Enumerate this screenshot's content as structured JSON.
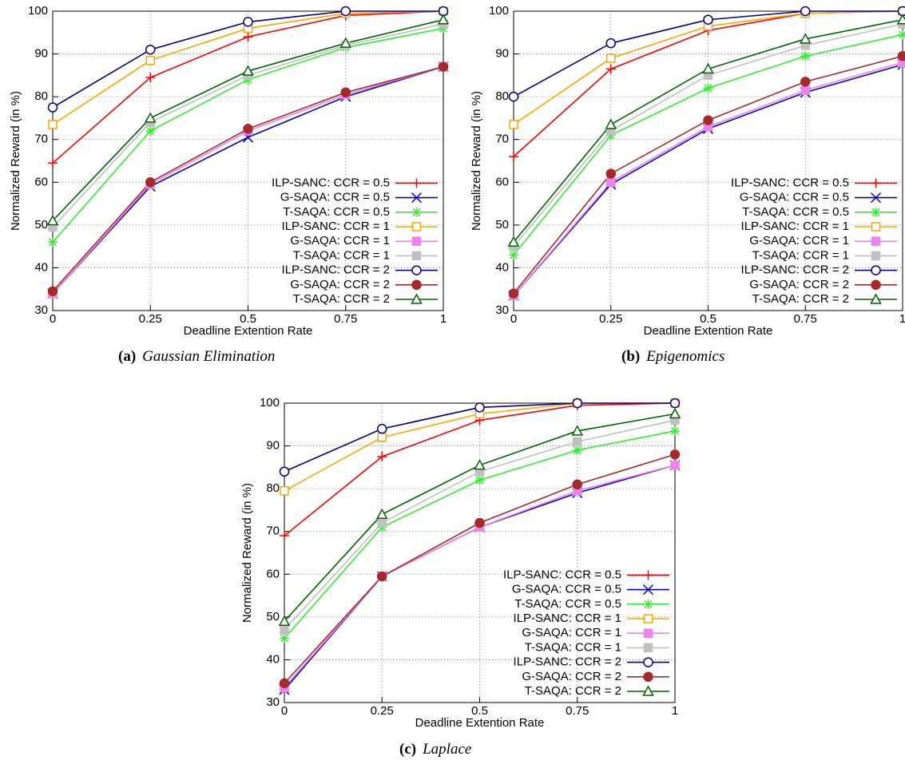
{
  "chart_data": [
    {
      "type": "line",
      "caption_label": "(a)",
      "caption": "Gaussian Elimination",
      "xlabel": "Deadline Extention Rate",
      "ylabel": "Normalized Reward (in %)",
      "x": [
        0,
        0.25,
        0.5,
        0.75,
        1
      ],
      "xlim": [
        0,
        1
      ],
      "xticks": [
        0,
        0.25,
        0.5,
        0.75,
        1
      ],
      "ylim": [
        30,
        100
      ],
      "yticks": [
        30,
        40,
        50,
        60,
        70,
        80,
        90,
        100
      ],
      "grid": true,
      "legend": "lower right",
      "series": [
        {
          "name": "ILP-SANC: CCR = 0.5",
          "color": "#ff0000",
          "marker": "plus",
          "values": [
            64.5,
            84.5,
            94,
            99,
            100
          ]
        },
        {
          "name": "G-SAQA: CCR = 0.5",
          "color": "#0000cc",
          "marker": "cross",
          "values": [
            34,
            59,
            70.5,
            80,
            87
          ]
        },
        {
          "name": "T-SAQA: CCR = 0.5",
          "color": "#33ee33",
          "marker": "star",
          "values": [
            46,
            72,
            84,
            91.5,
            96
          ]
        },
        {
          "name": "ILP-SANC: CCR = 1",
          "color": "#ffa500",
          "marker": "square-open",
          "values": [
            73.5,
            88.5,
            96,
            99.5,
            100
          ]
        },
        {
          "name": "G-SAQA: CCR = 1",
          "color": "#ee82ee",
          "marker": "square",
          "values": [
            34,
            59.5,
            72,
            80.5,
            87
          ]
        },
        {
          "name": "T-SAQA: CCR = 1",
          "color": "#c0c0c0",
          "marker": "square",
          "values": [
            49.5,
            74,
            85,
            92,
            97
          ]
        },
        {
          "name": "ILP-SANC: CCR = 2",
          "color": "#000080",
          "marker": "circle-open",
          "values": [
            77.5,
            91,
            97.5,
            100,
            100
          ]
        },
        {
          "name": "G-SAQA: CCR = 2",
          "color": "#a52a2a",
          "marker": "circle",
          "values": [
            34.5,
            60,
            72.5,
            81,
            87
          ]
        },
        {
          "name": "T-SAQA: CCR = 2",
          "color": "#006400",
          "marker": "triangle-open",
          "values": [
            51,
            75,
            86,
            92.5,
            98
          ]
        }
      ]
    },
    {
      "type": "line",
      "caption_label": "(b)",
      "caption": "Epigenomics",
      "xlabel": "Deadline Extention Rate",
      "ylabel": "Normalized Reward (in %)",
      "x": [
        0,
        0.25,
        0.5,
        0.75,
        1
      ],
      "xlim": [
        0,
        1
      ],
      "xticks": [
        0,
        0.25,
        0.5,
        0.75,
        1
      ],
      "ylim": [
        30,
        100
      ],
      "yticks": [
        30,
        40,
        50,
        60,
        70,
        80,
        90,
        100
      ],
      "grid": true,
      "legend": "lower right",
      "series": [
        {
          "name": "ILP-SANC: CCR = 0.5",
          "color": "#ff0000",
          "marker": "plus",
          "values": [
            66,
            86.5,
            95.5,
            99.5,
            100
          ]
        },
        {
          "name": "G-SAQA: CCR = 0.5",
          "color": "#0000cc",
          "marker": "cross",
          "values": [
            33.5,
            59.5,
            72.5,
            81,
            87.5
          ]
        },
        {
          "name": "T-SAQA: CCR = 0.5",
          "color": "#33ee33",
          "marker": "star",
          "values": [
            43,
            71,
            82,
            89.5,
            94.5
          ]
        },
        {
          "name": "ILP-SANC: CCR = 1",
          "color": "#ffa500",
          "marker": "square-open",
          "values": [
            73.5,
            89,
            96.5,
            99.5,
            100
          ]
        },
        {
          "name": "G-SAQA: CCR = 1",
          "color": "#ee82ee",
          "marker": "square",
          "values": [
            33.5,
            60,
            73,
            81.5,
            88
          ]
        },
        {
          "name": "T-SAQA: CCR = 1",
          "color": "#c0c0c0",
          "marker": "square",
          "values": [
            45,
            72,
            85,
            92,
            97
          ]
        },
        {
          "name": "ILP-SANC: CCR = 2",
          "color": "#000080",
          "marker": "circle-open",
          "values": [
            80,
            92.5,
            98,
            100,
            100
          ]
        },
        {
          "name": "G-SAQA: CCR = 2",
          "color": "#a52a2a",
          "marker": "circle",
          "values": [
            34,
            62,
            74.5,
            83.5,
            89.5
          ]
        },
        {
          "name": "T-SAQA: CCR = 2",
          "color": "#006400",
          "marker": "triangle-open",
          "values": [
            46,
            73.5,
            86.5,
            93.5,
            98
          ]
        }
      ]
    },
    {
      "type": "line",
      "caption_label": "(c)",
      "caption": "Laplace",
      "xlabel": "Deadline Extention Rate",
      "ylabel": "Normalized Reward (in %)",
      "x": [
        0,
        0.25,
        0.5,
        0.75,
        1
      ],
      "xlim": [
        0,
        1
      ],
      "xticks": [
        0,
        0.25,
        0.5,
        0.75,
        1
      ],
      "ylim": [
        30,
        100
      ],
      "yticks": [
        30,
        40,
        50,
        60,
        70,
        80,
        90,
        100
      ],
      "grid": true,
      "legend": "lower right",
      "series": [
        {
          "name": "ILP-SANC: CCR = 0.5",
          "color": "#ff0000",
          "marker": "plus",
          "values": [
            69,
            87.5,
            96,
            99.5,
            100
          ]
        },
        {
          "name": "G-SAQA: CCR = 0.5",
          "color": "#0000cc",
          "marker": "cross",
          "values": [
            33,
            59.5,
            71,
            79,
            85.5
          ]
        },
        {
          "name": "T-SAQA: CCR = 0.5",
          "color": "#33ee33",
          "marker": "star",
          "values": [
            45,
            71,
            82,
            89,
            93.5
          ]
        },
        {
          "name": "ILP-SANC: CCR = 1",
          "color": "#ffa500",
          "marker": "square-open",
          "values": [
            79.5,
            92,
            97.5,
            100,
            100
          ]
        },
        {
          "name": "G-SAQA: CCR = 1",
          "color": "#ee82ee",
          "marker": "square",
          "values": [
            33.5,
            59.5,
            71,
            79.5,
            85.5
          ]
        },
        {
          "name": "T-SAQA: CCR = 1",
          "color": "#c0c0c0",
          "marker": "square",
          "values": [
            47,
            72,
            84,
            91,
            96
          ]
        },
        {
          "name": "ILP-SANC: CCR = 2",
          "color": "#000080",
          "marker": "circle-open",
          "values": [
            84,
            94,
            99,
            100,
            100
          ]
        },
        {
          "name": "G-SAQA: CCR = 2",
          "color": "#a52a2a",
          "marker": "circle",
          "values": [
            34.5,
            59.5,
            72,
            81,
            88
          ]
        },
        {
          "name": "T-SAQA: CCR = 2",
          "color": "#006400",
          "marker": "triangle-open",
          "values": [
            49,
            74,
            85.5,
            93.5,
            97.5
          ]
        }
      ]
    }
  ]
}
